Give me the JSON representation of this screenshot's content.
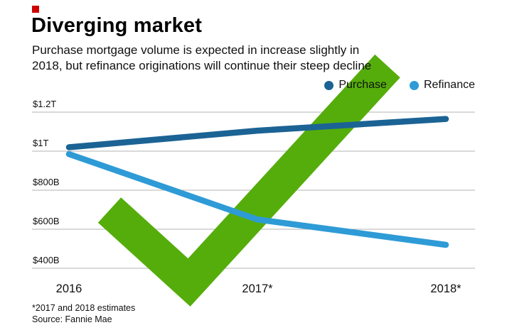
{
  "header": {
    "title": "Diverging market",
    "subtitle_line1": "Purchase mortgage volume is expected in increase slightly in",
    "subtitle_line2": "2018, but refinance originations will continue their steep decline",
    "accent_color": "#cc0000"
  },
  "legend": [
    {
      "label": "Purchase",
      "color": "#1b6394"
    },
    {
      "label": "Refinance",
      "color": "#2e9bd6"
    }
  ],
  "chart_data": {
    "type": "line",
    "title": "Diverging market",
    "x": [
      2016,
      2017,
      2018
    ],
    "x_tick_labels": [
      "2016",
      "2017*",
      "2018*"
    ],
    "series": [
      {
        "name": "Purchase",
        "color": "#1b6394",
        "values_billions": [
          1020,
          1105,
          1165
        ]
      },
      {
        "name": "Refinance",
        "color": "#2e9bd6",
        "values_billions": [
          985,
          650,
          520
        ]
      }
    ],
    "y_ticks": [
      {
        "value": 1200,
        "label": "$1.2T"
      },
      {
        "value": 1000,
        "label": "$1T"
      },
      {
        "value": 800,
        "label": "$800B"
      },
      {
        "value": 600,
        "label": "$600B"
      },
      {
        "value": 400,
        "label": "$400B"
      }
    ],
    "ylim_billions": [
      400,
      1260
    ],
    "grid": true,
    "gridline_color": "#b3b3b3",
    "legend_position": "top-right",
    "units": "US dollars (B = billions, T = trillions)"
  },
  "overlay": {
    "name": "green-checkmark-watermark",
    "color": "#55ad0b"
  },
  "footnotes": {
    "estimates": "*2017 and 2018 estimates",
    "source": "Source: Fannie Mae"
  }
}
